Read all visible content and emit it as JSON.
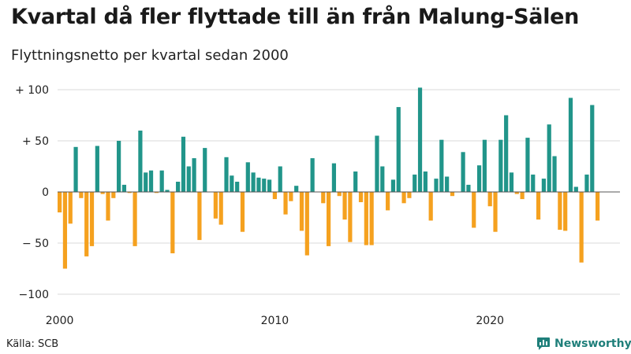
{
  "header": {
    "title": "Kvartal då fler flyttade till än från Malung-Sälen",
    "subtitle": "Flyttningsnetto per kvartal sedan 2000"
  },
  "footer": {
    "source": "Källa: SCB",
    "brand": "Newsworthy",
    "brand_icon": "newsworthy-logo-icon"
  },
  "colors": {
    "positive": "#21958a",
    "negative": "#f5a11f",
    "grid": "#d9d9d9",
    "zero_line": "#555555",
    "brand": "#1f7f7a"
  },
  "chart_data": {
    "type": "bar",
    "title": "Kvartal då fler flyttade till än från Malung-Sälen",
    "subtitle": "Flyttningsnetto per kvartal sedan 2000",
    "xlabel": "",
    "ylabel": "",
    "ylim": [
      -100,
      100
    ],
    "y_ticks": [
      {
        "value": 100,
        "label": "+ 100"
      },
      {
        "value": 50,
        "label": "+  50"
      },
      {
        "value": 0,
        "label": "0"
      },
      {
        "value": -50,
        "label": "− 50"
      },
      {
        "value": -100,
        "label": "−100"
      }
    ],
    "x_ticks": [
      {
        "index": 0,
        "label": "2000"
      },
      {
        "index": 40,
        "label": "2010"
      },
      {
        "index": 80,
        "label": "2020"
      }
    ],
    "grid": true,
    "start_quarter": "2000 Q1",
    "values": [
      -20,
      -75,
      -31,
      44,
      -6,
      -63,
      -53,
      45,
      -2,
      -28,
      -6,
      50,
      7,
      -1,
      -53,
      60,
      19,
      21,
      -1,
      21,
      2,
      -60,
      10,
      54,
      25,
      33,
      -47,
      43,
      0,
      -26,
      -32,
      34,
      16,
      10,
      -39,
      29,
      19,
      14,
      13,
      12,
      -7,
      25,
      -22,
      -9,
      6,
      -38,
      -62,
      33,
      0,
      -11,
      -53,
      28,
      -4,
      -27,
      -49,
      20,
      -10,
      -52,
      -52,
      55,
      25,
      -18,
      12,
      83,
      -11,
      -6,
      17,
      102,
      20,
      -28,
      13,
      51,
      15,
      -4,
      0,
      39,
      7,
      -35,
      26,
      51,
      -14,
      -39,
      51,
      75,
      19,
      -2,
      -7,
      53,
      17,
      -27,
      13,
      66,
      35,
      -37,
      -38,
      92,
      5,
      -69,
      17,
      85,
      -28
    ]
  }
}
